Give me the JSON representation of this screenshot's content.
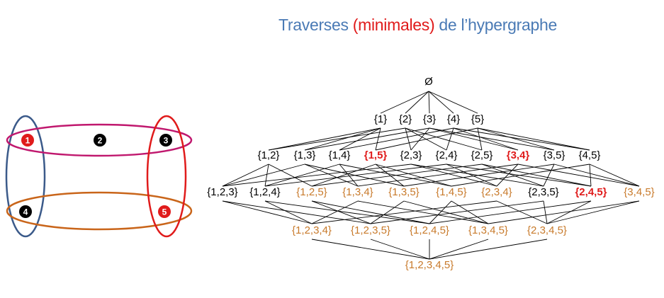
{
  "title": {
    "part1": "Traverses ",
    "highlight": "(minimales)",
    "part2": "  de l’hypergraphe"
  },
  "colors": {
    "title": "#4a7ab5",
    "minimal": "#e01b1b",
    "transversal": "#c87a2b",
    "other": "#000000",
    "edge_magenta": "#c0186e",
    "edge_orange": "#c9651a",
    "edge_blue": "#3b5a8a",
    "edge_red": "#e01b1b"
  },
  "hypergraph": {
    "vertices": [
      {
        "id": "1",
        "label": "1",
        "color": "#e01b1b"
      },
      {
        "id": "2",
        "label": "2",
        "color": "#000000"
      },
      {
        "id": "3",
        "label": "3",
        "color": "#000000"
      },
      {
        "id": "4",
        "label": "4",
        "color": "#000000"
      },
      {
        "id": "5",
        "label": "5",
        "color": "#e01b1b"
      }
    ],
    "hyperedges": [
      {
        "id": "e-123",
        "members": [
          "1",
          "2",
          "3"
        ],
        "color": "#c0186e"
      },
      {
        "id": "e-45",
        "members": [
          "4",
          "5"
        ],
        "color": "#c9651a"
      },
      {
        "id": "e-14",
        "members": [
          "1",
          "4"
        ],
        "color": "#3b5a8a"
      },
      {
        "id": "e-35",
        "members": [
          "3",
          "5"
        ],
        "color": "#e01b1b"
      }
    ]
  },
  "lattice": {
    "levels": [
      [
        {
          "label": "Ø",
          "status": "other"
        }
      ],
      [
        {
          "label": "{1}",
          "status": "other"
        },
        {
          "label": "{2}",
          "status": "other"
        },
        {
          "label": "{3}",
          "status": "other"
        },
        {
          "label": "{4}",
          "status": "other"
        },
        {
          "label": "{5}",
          "status": "other"
        }
      ],
      [
        {
          "label": "{1,2}",
          "status": "other"
        },
        {
          "label": "{1,3}",
          "status": "other"
        },
        {
          "label": "{1,4}",
          "status": "other"
        },
        {
          "label": "{1,5}",
          "status": "minimal"
        },
        {
          "label": "{2,3}",
          "status": "other"
        },
        {
          "label": "{2,4}",
          "status": "other"
        },
        {
          "label": "{2,5}",
          "status": "other"
        },
        {
          "label": "{3,4}",
          "status": "minimal"
        },
        {
          "label": "{3,5}",
          "status": "other"
        },
        {
          "label": "{4,5}",
          "status": "other"
        }
      ],
      [
        {
          "label": "{1,2,3}",
          "status": "other"
        },
        {
          "label": "{1,2,4}",
          "status": "other"
        },
        {
          "label": "{1,2,5}",
          "status": "transversal"
        },
        {
          "label": "{1,3,4}",
          "status": "transversal"
        },
        {
          "label": "{1,3,5}",
          "status": "transversal"
        },
        {
          "label": "{1,4,5}",
          "status": "transversal"
        },
        {
          "label": "{2,3,4}",
          "status": "transversal"
        },
        {
          "label": "{2,3,5}",
          "status": "other"
        },
        {
          "label": "{2,4,5}",
          "status": "minimal"
        },
        {
          "label": "{3,4,5}",
          "status": "transversal"
        }
      ],
      [
        {
          "label": "{1,2,3,4}",
          "status": "transversal"
        },
        {
          "label": "{1,2,3,5}",
          "status": "transversal"
        },
        {
          "label": "{1,2,4,5}",
          "status": "transversal"
        },
        {
          "label": "{1,3,4,5}",
          "status": "transversal"
        },
        {
          "label": "{2,3,4,5}",
          "status": "transversal"
        }
      ],
      [
        {
          "label": "{1,2,3,4,5}",
          "status": "transversal"
        }
      ]
    ]
  }
}
